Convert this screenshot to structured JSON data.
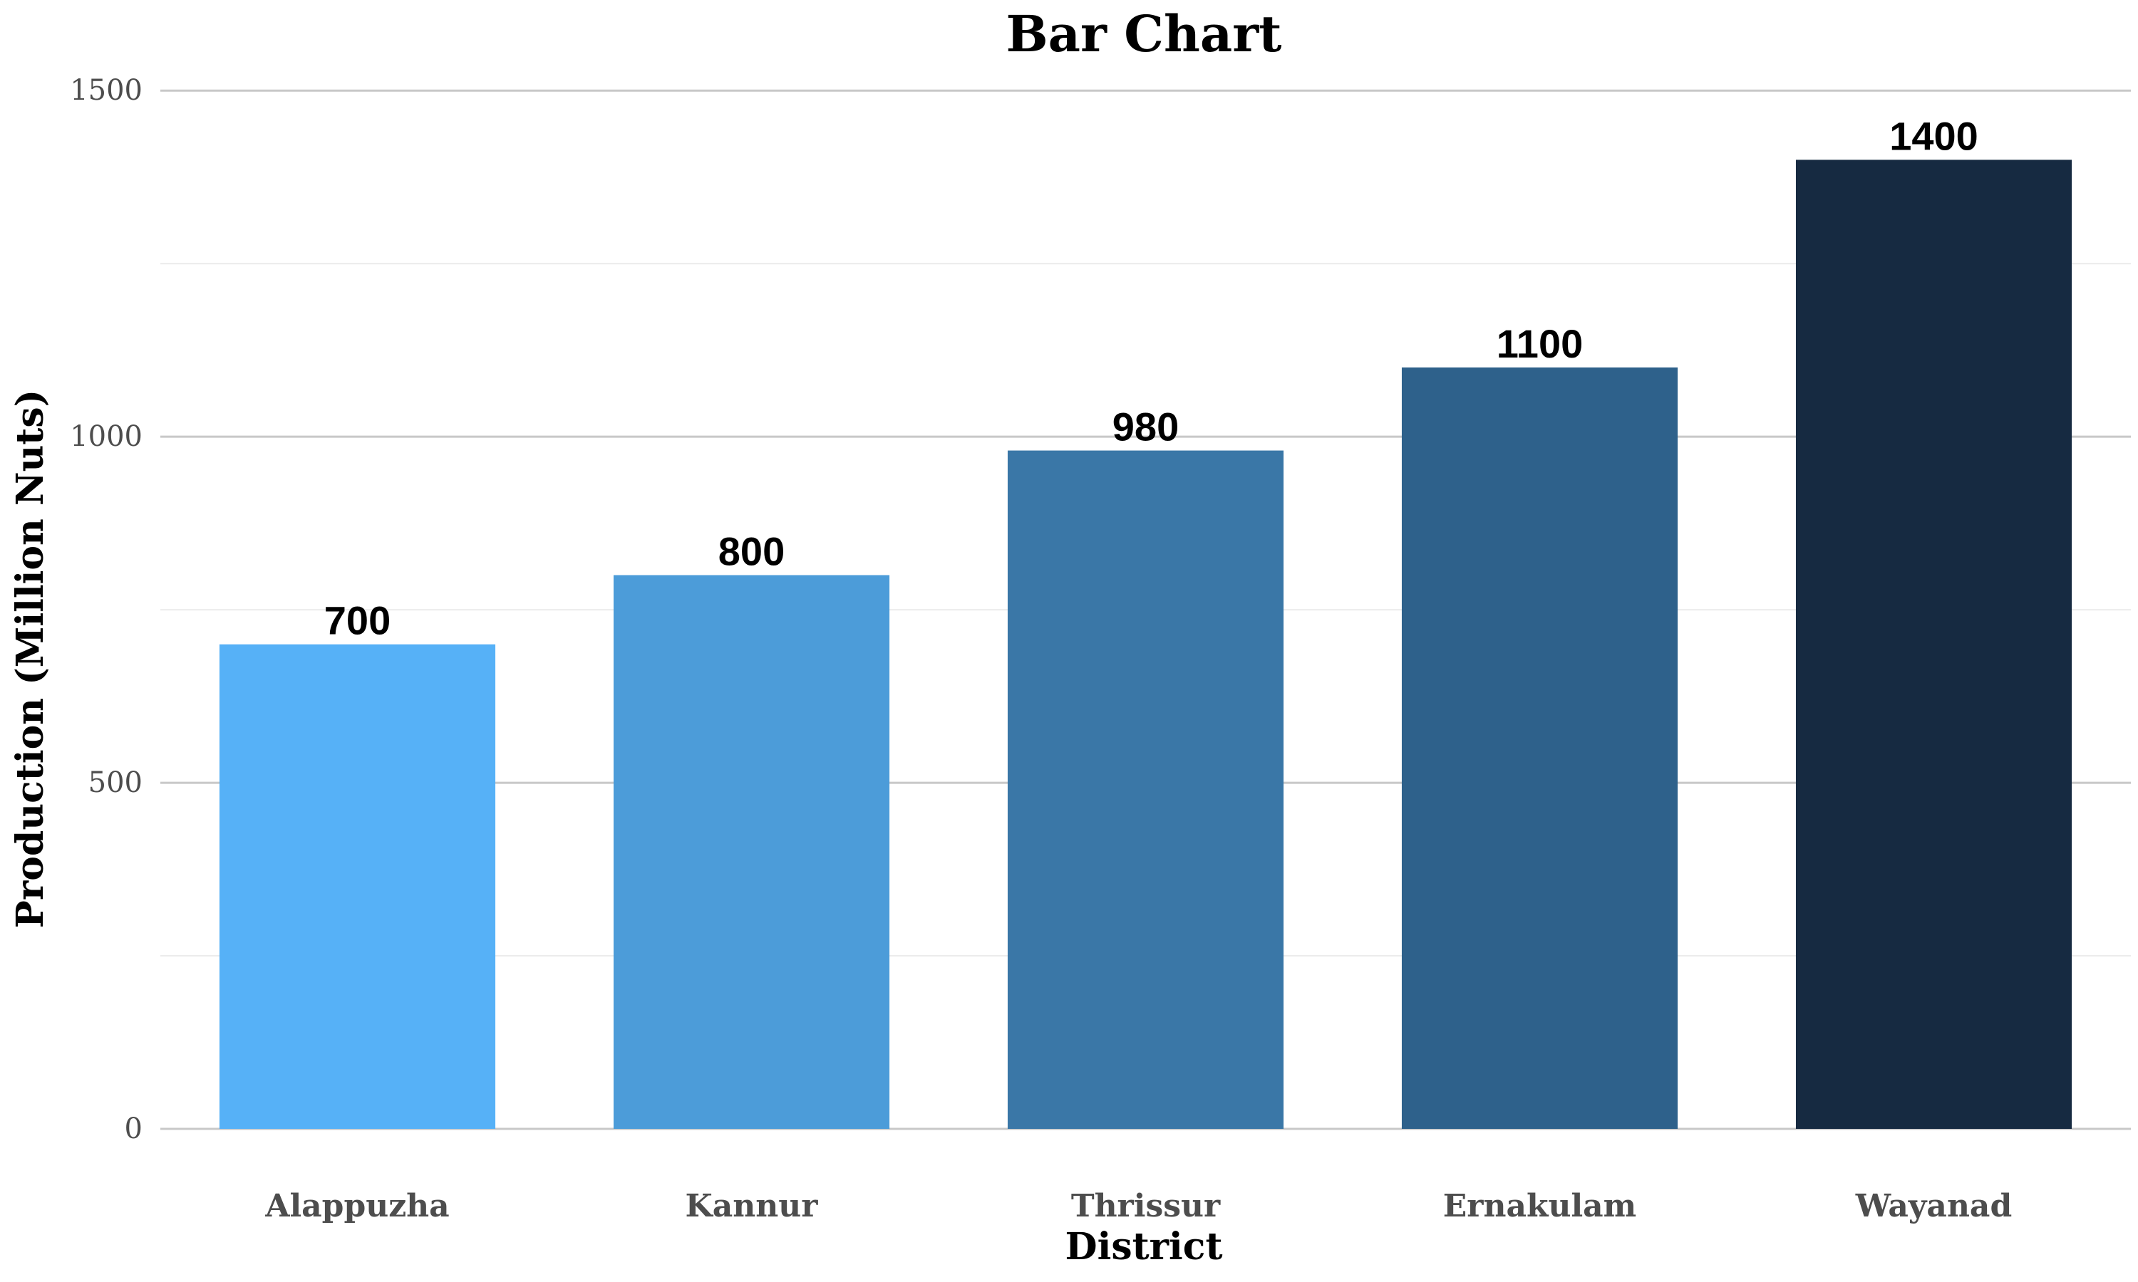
{
  "chart_data": {
    "type": "bar",
    "title": "Bar Chart",
    "xlabel": "District",
    "ylabel": "Production (Million Nuts)",
    "categories": [
      "Alappuzha",
      "Kannur",
      "Thrissur",
      "Ernakulam",
      "Wayanad"
    ],
    "values": [
      700,
      800,
      980,
      1100,
      1400
    ],
    "data_labels": [
      "700",
      "800",
      "980",
      "1100",
      "1400"
    ],
    "colors": [
      "#56b1f7",
      "#4c9cd9",
      "#3a77a7",
      "#2e618b",
      "#162a41"
    ],
    "ylim": [
      0,
      1600
    ],
    "y_ticks": [
      0,
      500,
      1000,
      1500
    ],
    "y_tick_labels": [
      "0",
      "500",
      "1000",
      "1500"
    ],
    "y_minor_ticks": [
      250,
      750,
      1250
    ],
    "grid": true,
    "legend": "none"
  }
}
